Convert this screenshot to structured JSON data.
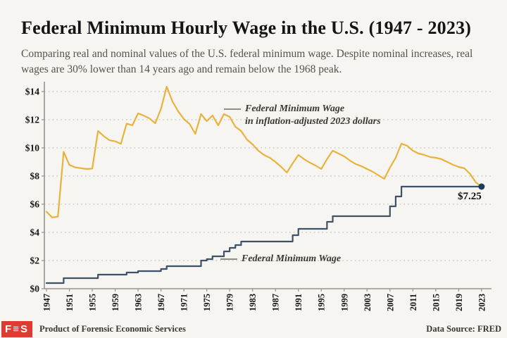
{
  "header": {
    "title": "Federal Minimum Hourly Wage in the U.S. (1947 - 2023)",
    "subtitle": "Comparing real and nominal values of the U.S. federal minimum wage. Despite nominal increases, real wages are 30% lower than 14 years ago and remain below the 1968 peak."
  },
  "annotations": {
    "real_line_label_1": "Federal Minimum Wage",
    "real_line_label_2": "in inflation-adjusted 2023 dollars",
    "nominal_line_label": "Federal Minimum Wage",
    "end_value_label": "$7.25"
  },
  "footer": {
    "logo_text": "F≡S",
    "product_text": "Product of Forensic Economic Services",
    "data_source": "Data Source: FRED"
  },
  "colors": {
    "real_line": "#e9b23c",
    "nominal_line": "#3e5166",
    "end_dot": "#1e3a5c",
    "grid": "#ccc8c0",
    "axis": "#97938b",
    "tick_text": "#161616",
    "accent_red": "#de3b33",
    "background": "#f6f5f2"
  },
  "chart_data": {
    "type": "line",
    "xlabel": "",
    "ylabel": "",
    "xlim": [
      1947,
      2024.6
    ],
    "ylim": [
      0,
      14.8
    ],
    "grid": "horizontal-dotted",
    "ytick_prefix": "$",
    "yticks": [
      0,
      2,
      4,
      6,
      8,
      10,
      12,
      14
    ],
    "xticks": [
      1947,
      1951,
      1955,
      1959,
      1963,
      1967,
      1971,
      1975,
      1979,
      1983,
      1987,
      1991,
      1995,
      1999,
      2003,
      2007,
      2011,
      2015,
      2019,
      2023
    ],
    "x": [
      1947,
      1948,
      1949,
      1950,
      1951,
      1952,
      1953,
      1954,
      1955,
      1956,
      1957,
      1958,
      1959,
      1960,
      1961,
      1962,
      1963,
      1964,
      1965,
      1966,
      1967,
      1968,
      1969,
      1970,
      1971,
      1972,
      1973,
      1974,
      1975,
      1976,
      1977,
      1978,
      1979,
      1980,
      1981,
      1982,
      1983,
      1984,
      1985,
      1986,
      1987,
      1988,
      1989,
      1990,
      1991,
      1992,
      1993,
      1994,
      1995,
      1996,
      1997,
      1998,
      1999,
      2000,
      2001,
      2002,
      2003,
      2004,
      2005,
      2006,
      2007,
      2008,
      2009,
      2010,
      2011,
      2012,
      2013,
      2014,
      2015,
      2016,
      2017,
      2018,
      2019,
      2020,
      2021,
      2022,
      2023
    ],
    "series": [
      {
        "name": "Federal Minimum Wage in inflation-adjusted 2023 dollars",
        "style": "line",
        "color_key": "real_line",
        "values": [
          5.47,
          5.06,
          5.12,
          9.72,
          8.79,
          8.62,
          8.56,
          8.5,
          8.53,
          11.2,
          10.84,
          10.54,
          10.47,
          10.29,
          11.72,
          11.6,
          12.45,
          12.29,
          12.09,
          11.75,
          12.77,
          14.35,
          13.3,
          12.6,
          12.05,
          11.7,
          11.0,
          12.4,
          11.9,
          12.3,
          11.6,
          12.4,
          12.2,
          11.5,
          11.2,
          10.6,
          10.25,
          9.8,
          9.5,
          9.3,
          9.0,
          8.65,
          8.25,
          8.9,
          9.5,
          9.2,
          8.95,
          8.75,
          8.5,
          9.2,
          9.8,
          9.6,
          9.4,
          9.1,
          8.85,
          8.7,
          8.5,
          8.3,
          8.05,
          7.8,
          8.6,
          9.3,
          10.3,
          10.15,
          9.8,
          9.6,
          9.5,
          9.35,
          9.3,
          9.2,
          9.0,
          8.8,
          8.65,
          8.55,
          8.15,
          7.55,
          7.25
        ]
      },
      {
        "name": "Federal Minimum Wage",
        "style": "step",
        "color_key": "nominal_line",
        "values": [
          0.4,
          0.4,
          0.4,
          0.75,
          0.75,
          0.75,
          0.75,
          0.75,
          0.75,
          1.0,
          1.0,
          1.0,
          1.0,
          1.0,
          1.15,
          1.15,
          1.25,
          1.25,
          1.25,
          1.25,
          1.4,
          1.6,
          1.6,
          1.6,
          1.6,
          1.6,
          1.6,
          2.0,
          2.1,
          2.3,
          2.3,
          2.65,
          2.9,
          3.1,
          3.35,
          3.35,
          3.35,
          3.35,
          3.35,
          3.35,
          3.35,
          3.35,
          3.35,
          3.8,
          4.25,
          4.25,
          4.25,
          4.25,
          4.25,
          4.75,
          5.15,
          5.15,
          5.15,
          5.15,
          5.15,
          5.15,
          5.15,
          5.15,
          5.15,
          5.15,
          5.85,
          6.55,
          7.25,
          7.25,
          7.25,
          7.25,
          7.25,
          7.25,
          7.25,
          7.25,
          7.25,
          7.25,
          7.25,
          7.25,
          7.25,
          7.25,
          7.25
        ]
      }
    ],
    "end_point": {
      "year": 2023,
      "value": 7.25,
      "label": "$7.25"
    }
  }
}
